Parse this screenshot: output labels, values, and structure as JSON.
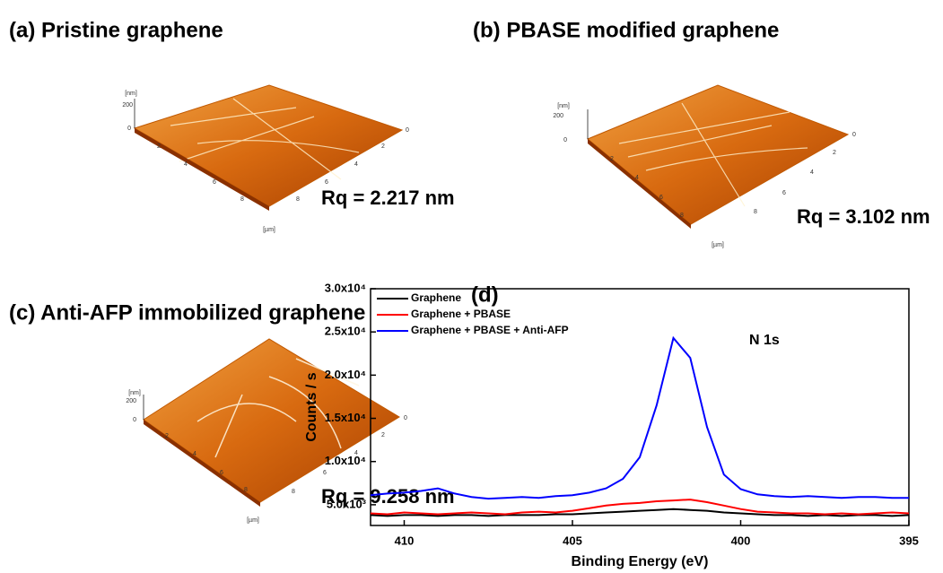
{
  "panels": [
    {
      "label": "(a)  Pristine graphene",
      "rq": "Rq = 2.217 nm",
      "z_unit": "[nm]",
      "z_ticks": [
        "200",
        "0"
      ],
      "x_unit": "[µm]",
      "x_ticks": [
        "2",
        "4",
        "6",
        "8"
      ],
      "y_ticks": [
        "0",
        "2",
        "4",
        "6",
        "8"
      ]
    },
    {
      "label": "(b) PBASE modified graphene",
      "rq": "Rq = 3.102 nm",
      "z_unit": "[nm]",
      "z_ticks": [
        "200",
        "0"
      ],
      "x_unit": "[µm]",
      "x_ticks": [
        "2",
        "4",
        "6",
        "8"
      ],
      "y_ticks": [
        "0",
        "2",
        "4",
        "6",
        "8"
      ]
    },
    {
      "label": "(c) Anti-AFP immobilized graphene",
      "rq": "Rq = 9.258 nm",
      "z_unit": "[nm]",
      "z_ticks": [
        "200",
        "0"
      ],
      "x_unit": "[µm]",
      "x_ticks": [
        "2",
        "4",
        "6",
        "8"
      ],
      "y_ticks": [
        "0",
        "2",
        "4",
        "6",
        "8"
      ]
    }
  ],
  "chart_data": {
    "type": "line",
    "panel_label": "(d)",
    "annotation": "N 1s",
    "x_label": "Binding Energy (eV)",
    "y_label": "Counts / s",
    "xlim": [
      411,
      395
    ],
    "ylim": [
      2600,
      30000
    ],
    "xticks": [
      410,
      405,
      400,
      395
    ],
    "yticks": [
      {
        "value": 5000,
        "label": "5.0x10³"
      },
      {
        "value": 10000,
        "label": "1.0x10⁴"
      },
      {
        "value": 15000,
        "label": "1.5x10⁴"
      },
      {
        "value": 20000,
        "label": "2.0x10⁴"
      },
      {
        "value": 25000,
        "label": "2.5x10⁴"
      },
      {
        "value": 30000,
        "label": "3.0x10⁴"
      }
    ],
    "x": [
      411,
      410.5,
      410,
      409.5,
      409,
      408.5,
      408,
      407.5,
      407,
      406.5,
      406,
      405.5,
      405,
      404.5,
      404,
      403.5,
      403,
      402.5,
      402,
      401.5,
      401,
      400.5,
      400,
      399.5,
      399,
      398.5,
      398,
      397.5,
      397,
      396.5,
      396,
      395.5,
      395
    ],
    "series": [
      {
        "name": "Graphene",
        "color": "#000000",
        "values": [
          3800,
          3700,
          3800,
          3800,
          3700,
          3800,
          3800,
          3700,
          3800,
          3800,
          3800,
          3900,
          3900,
          4000,
          4100,
          4200,
          4300,
          4400,
          4500,
          4400,
          4300,
          4100,
          4000,
          3900,
          3800,
          3800,
          3700,
          3800,
          3700,
          3800,
          3800,
          3700,
          3800
        ]
      },
      {
        "name": "Graphene + PBASE",
        "color": "#ff0000",
        "values": [
          4000,
          3900,
          4100,
          4000,
          3900,
          4000,
          4100,
          4000,
          3900,
          4100,
          4200,
          4100,
          4300,
          4600,
          4900,
          5100,
          5200,
          5400,
          5500,
          5600,
          5300,
          4900,
          4500,
          4200,
          4100,
          4000,
          4000,
          3900,
          4000,
          3900,
          4000,
          4100,
          4000
        ]
      },
      {
        "name": "Graphene + PBASE + Anti-AFP",
        "color": "#0000ff",
        "values": [
          6100,
          6300,
          6400,
          6600,
          6900,
          6300,
          5900,
          5700,
          5800,
          5900,
          5800,
          6000,
          6100,
          6400,
          6900,
          8000,
          10500,
          16500,
          24300,
          22000,
          14000,
          8500,
          6800,
          6200,
          6000,
          5900,
          6000,
          5900,
          5800,
          5900,
          5900,
          5800,
          5800
        ]
      }
    ]
  }
}
